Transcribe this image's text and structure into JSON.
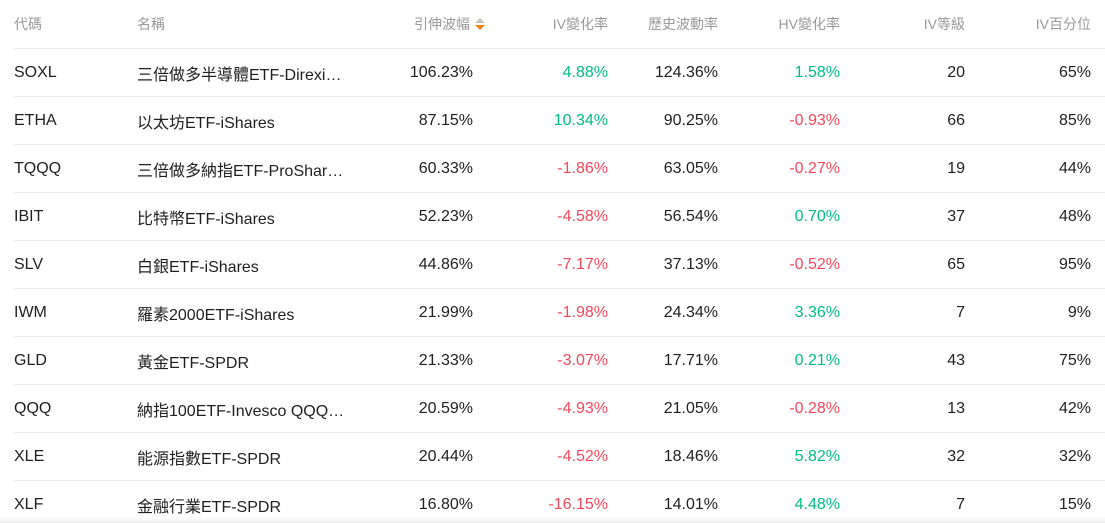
{
  "accent_colors": {
    "positive": "#00bc86",
    "negative": "#f5475b",
    "sort_active": "#f0810e",
    "sort_inactive": "#c8c3ba",
    "header_text": "#999999",
    "body_text": "#1f1f1f",
    "divider": "#ebebeb"
  },
  "table": {
    "columns": [
      {
        "key": "code",
        "label": "代碼",
        "align": "left"
      },
      {
        "key": "name",
        "label": "名稱",
        "align": "left"
      },
      {
        "key": "iv",
        "label": "引伸波幅",
        "align": "right",
        "sortable": true,
        "sort": "desc"
      },
      {
        "key": "iv_change",
        "label": "IV變化率",
        "align": "right",
        "colored": true
      },
      {
        "key": "hv",
        "label": "歷史波動率",
        "align": "right"
      },
      {
        "key": "hv_change",
        "label": "HV變化率",
        "align": "right",
        "colored": true
      },
      {
        "key": "iv_rank",
        "label": "IV等級",
        "align": "right"
      },
      {
        "key": "iv_percentile",
        "label": "IV百分位",
        "align": "right"
      }
    ],
    "rows": [
      {
        "code": "SOXL",
        "name": "三倍做多半導體ETF-Direxi…",
        "iv": "106.23%",
        "iv_change": "4.88%",
        "hv": "124.36%",
        "hv_change": "1.58%",
        "iv_rank": "20",
        "iv_percentile": "65%"
      },
      {
        "code": "ETHA",
        "name": "以太坊ETF-iShares",
        "iv": "87.15%",
        "iv_change": "10.34%",
        "hv": "90.25%",
        "hv_change": "-0.93%",
        "iv_rank": "66",
        "iv_percentile": "85%"
      },
      {
        "code": "TQQQ",
        "name": "三倍做多納指ETF-ProShar…",
        "iv": "60.33%",
        "iv_change": "-1.86%",
        "hv": "63.05%",
        "hv_change": "-0.27%",
        "iv_rank": "19",
        "iv_percentile": "44%"
      },
      {
        "code": "IBIT",
        "name": "比特幣ETF-iShares",
        "iv": "52.23%",
        "iv_change": "-4.58%",
        "hv": "56.54%",
        "hv_change": "0.70%",
        "iv_rank": "37",
        "iv_percentile": "48%"
      },
      {
        "code": "SLV",
        "name": "白銀ETF-iShares",
        "iv": "44.86%",
        "iv_change": "-7.17%",
        "hv": "37.13%",
        "hv_change": "-0.52%",
        "iv_rank": "65",
        "iv_percentile": "95%"
      },
      {
        "code": "IWM",
        "name": "羅素2000ETF-iShares",
        "iv": "21.99%",
        "iv_change": "-1.98%",
        "hv": "24.34%",
        "hv_change": "3.36%",
        "iv_rank": "7",
        "iv_percentile": "9%"
      },
      {
        "code": "GLD",
        "name": "黃金ETF-SPDR",
        "iv": "21.33%",
        "iv_change": "-3.07%",
        "hv": "17.71%",
        "hv_change": "0.21%",
        "iv_rank": "43",
        "iv_percentile": "75%"
      },
      {
        "code": "QQQ",
        "name": "納指100ETF-Invesco QQQ…",
        "iv": "20.59%",
        "iv_change": "-4.93%",
        "hv": "21.05%",
        "hv_change": "-0.28%",
        "iv_rank": "13",
        "iv_percentile": "42%"
      },
      {
        "code": "XLE",
        "name": "能源指數ETF-SPDR",
        "iv": "20.44%",
        "iv_change": "-4.52%",
        "hv": "18.46%",
        "hv_change": "5.82%",
        "iv_rank": "32",
        "iv_percentile": "32%"
      },
      {
        "code": "XLF",
        "name": "金融行業ETF-SPDR",
        "iv": "16.80%",
        "iv_change": "-16.15%",
        "hv": "14.01%",
        "hv_change": "4.48%",
        "iv_rank": "7",
        "iv_percentile": "15%"
      }
    ]
  }
}
